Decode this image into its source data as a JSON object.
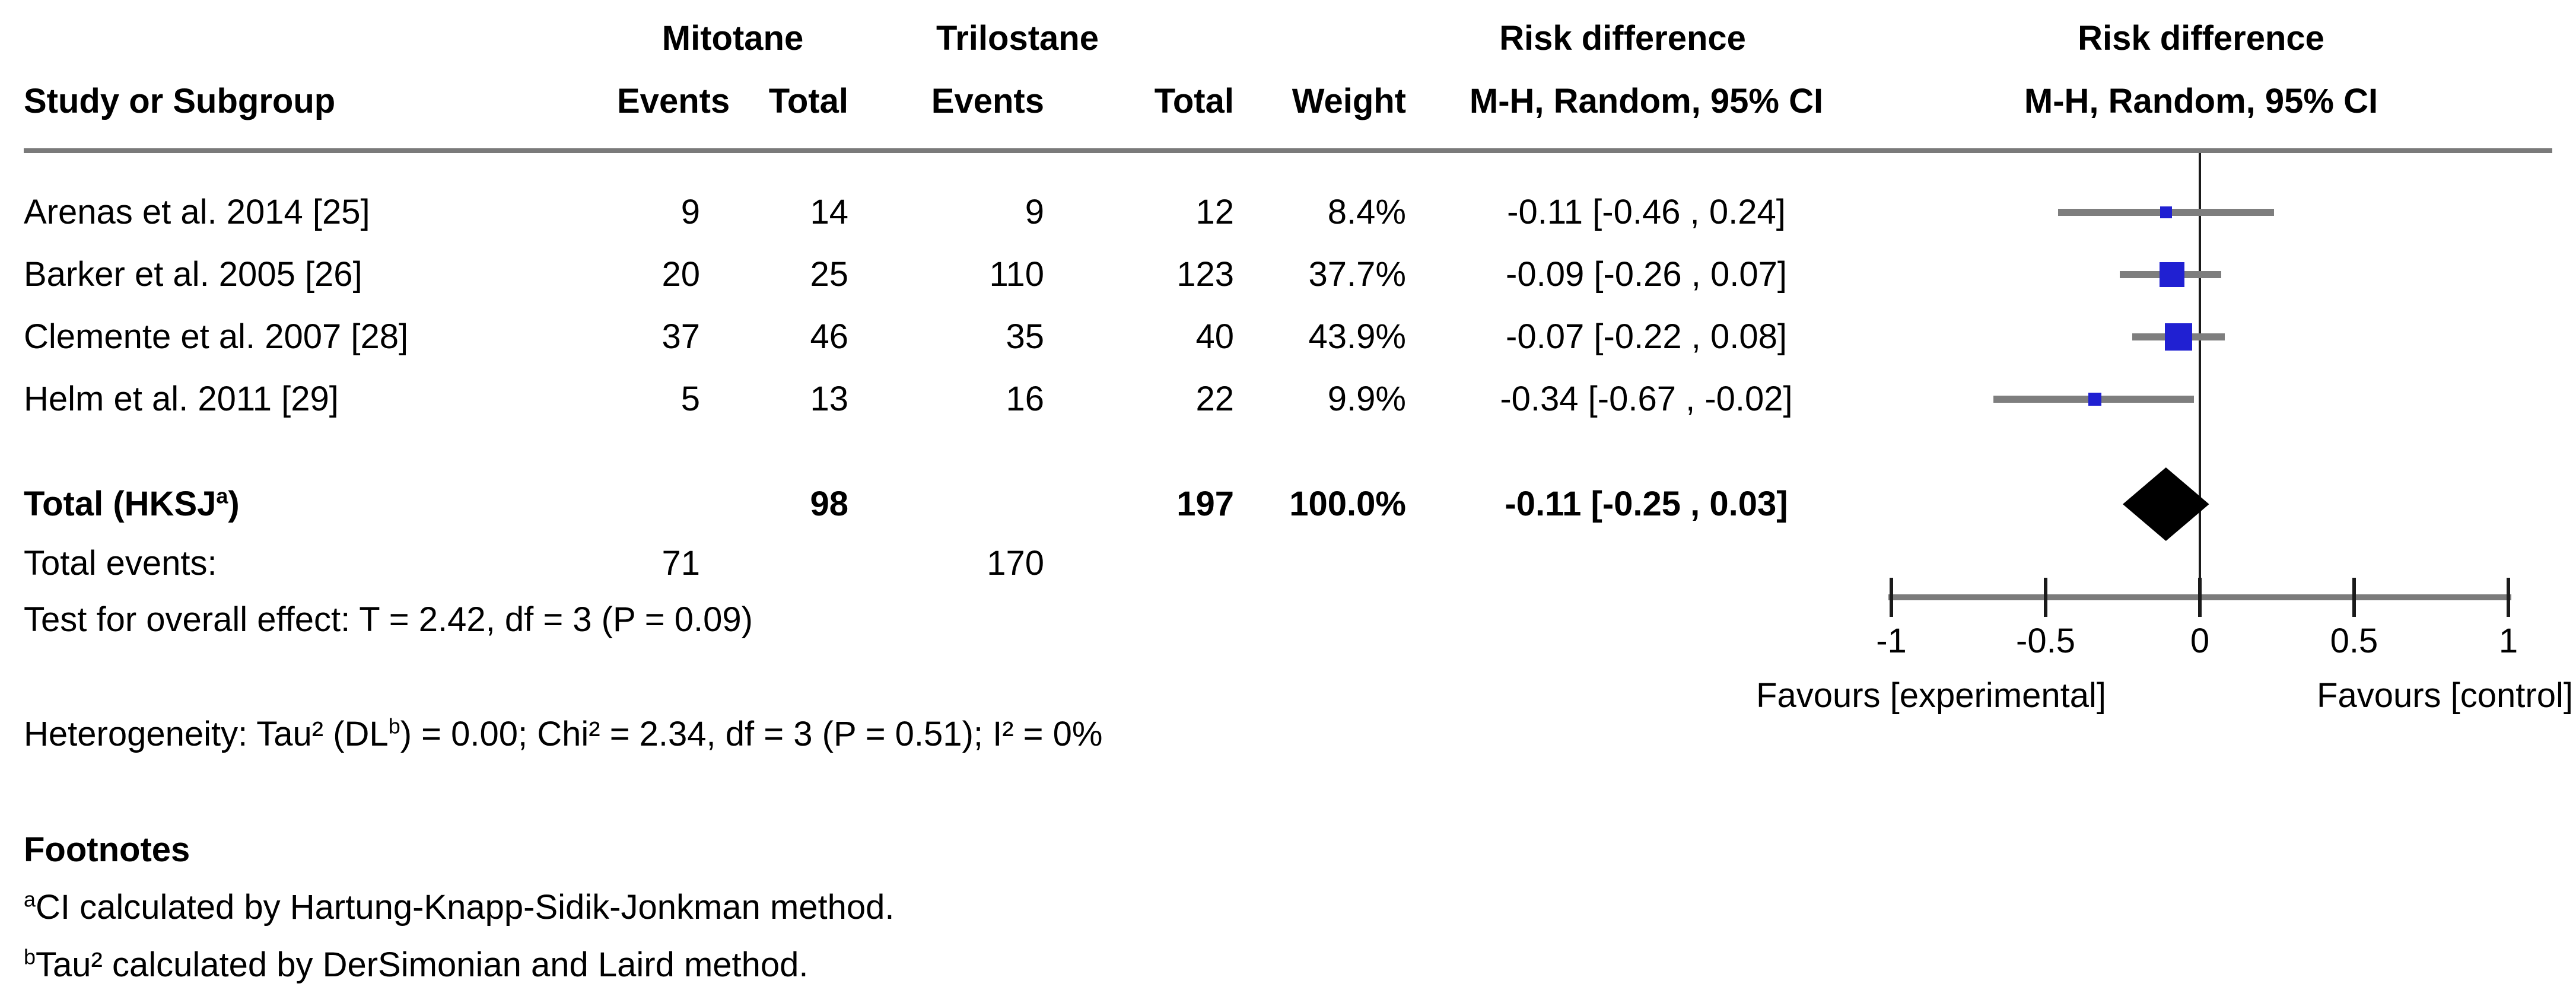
{
  "header": {
    "group_mitotane": "Mitotane",
    "group_trilostane": "Trilostane",
    "group_rd_text": "Risk difference",
    "group_rd_plot": "Risk difference",
    "col_study": "Study or Subgroup",
    "col_events": "Events",
    "col_total": "Total",
    "col_weight": "Weight",
    "col_ci": "M-H, Random, 95% CI",
    "col_ci_plot": "M-H, Random, 95% CI"
  },
  "studies": [
    {
      "name": "Arenas et al. 2014 [25]",
      "mit_events": "9",
      "mit_total": "14",
      "tri_events": "9",
      "tri_total": "12",
      "weight": "8.4%",
      "ci_text": "-0.11 [-0.46 , 0.24]",
      "rd": -0.11,
      "ci_low": -0.46,
      "ci_high": 0.24,
      "weight_pct": 8.4
    },
    {
      "name": "Barker et al. 2005 [26]",
      "mit_events": "20",
      "mit_total": "25",
      "tri_events": "110",
      "tri_total": "123",
      "weight": "37.7%",
      "ci_text": "-0.09 [-0.26 , 0.07]",
      "rd": -0.09,
      "ci_low": -0.26,
      "ci_high": 0.07,
      "weight_pct": 37.7
    },
    {
      "name": "Clemente et al. 2007 [28]",
      "mit_events": "37",
      "mit_total": "46",
      "tri_events": "35",
      "tri_total": "40",
      "weight": "43.9%",
      "ci_text": "-0.07 [-0.22 , 0.08]",
      "rd": -0.07,
      "ci_low": -0.22,
      "ci_high": 0.08,
      "weight_pct": 43.9
    },
    {
      "name": "Helm et al. 2011 [29]",
      "mit_events": "5",
      "mit_total": "13",
      "tri_events": "16",
      "tri_total": "22",
      "weight": "9.9%",
      "ci_text": "-0.34 [-0.67 , -0.02]",
      "rd": -0.34,
      "ci_low": -0.67,
      "ci_high": -0.02,
      "weight_pct": 9.9
    }
  ],
  "total": {
    "label_pre": "Total (HKSJ",
    "label_sup": "a",
    "label_post": ")",
    "mit_total": "98",
    "tri_total": "197",
    "weight": "100.0%",
    "ci_text": "-0.11 [-0.25 , 0.03]",
    "rd": -0.11,
    "ci_low": -0.25,
    "ci_high": 0.03
  },
  "total_events": {
    "label": "Total events:",
    "mit": "71",
    "tri": "170"
  },
  "overall_effect": "Test for overall effect: T = 2.42, df = 3 (P = 0.09)",
  "heterogeneity": {
    "pre": "Heterogeneity: Tau² (DL",
    "sup": "b",
    "post": ") = 0.00; Chi² = 2.34, df = 3 (P = 0.51); I² = 0%"
  },
  "footnotes": {
    "title": "Footnotes",
    "a_sup": "a",
    "a_text": "CI calculated by Hartung-Knapp-Sidik-Jonkman method.",
    "b_sup": "b",
    "b_text": "Tau² calculated by DerSimonian and Laird method."
  },
  "plot": {
    "ticks": [
      {
        "v": -1,
        "label": "-1"
      },
      {
        "v": -0.5,
        "label": "-0.5"
      },
      {
        "v": 0,
        "label": "0"
      },
      {
        "v": 0.5,
        "label": "0.5"
      },
      {
        "v": 1,
        "label": "1"
      }
    ],
    "xmin": -1,
    "xmax": 1,
    "favours_left": "Favours [experimental]",
    "favours_right": "Favours [control]",
    "marker_color": "#2020d2",
    "ci_line_color": "#7e7e7e",
    "diamond_color": "#000000",
    "axis_color": "#7b7b7b"
  },
  "chart_data": {
    "type": "forest",
    "title": "Risk difference M-H, Random, 95% CI",
    "effect_measure": "Risk difference",
    "model": "M-H, Random, 95% CI",
    "x_axis": {
      "ticks": [
        -1,
        -0.5,
        0,
        0.5,
        1
      ],
      "range": [
        -1,
        1
      ],
      "label_left": "Favours [experimental]",
      "label_right": "Favours [control]"
    },
    "studies": [
      {
        "name": "Arenas et al. 2014 [25]",
        "estimate": -0.11,
        "ci": [
          -0.46,
          0.24
        ],
        "weight_pct": 8.4
      },
      {
        "name": "Barker et al. 2005 [26]",
        "estimate": -0.09,
        "ci": [
          -0.26,
          0.07
        ],
        "weight_pct": 37.7
      },
      {
        "name": "Clemente et al. 2007 [28]",
        "estimate": -0.07,
        "ci": [
          -0.22,
          0.08
        ],
        "weight_pct": 43.9
      },
      {
        "name": "Helm et al. 2011 [29]",
        "estimate": -0.34,
        "ci": [
          -0.67,
          -0.02
        ],
        "weight_pct": 9.9
      }
    ],
    "total": {
      "label": "Total (HKSJ a)",
      "estimate": -0.11,
      "ci": [
        -0.25,
        0.03
      ],
      "weight_pct": 100.0
    },
    "heterogeneity": "Tau² (DL b) = 0.00; Chi² = 2.34, df = 3 (P = 0.51); I² = 0%",
    "overall_effect_test": "T = 2.42, df = 3 (P = 0.09)"
  }
}
